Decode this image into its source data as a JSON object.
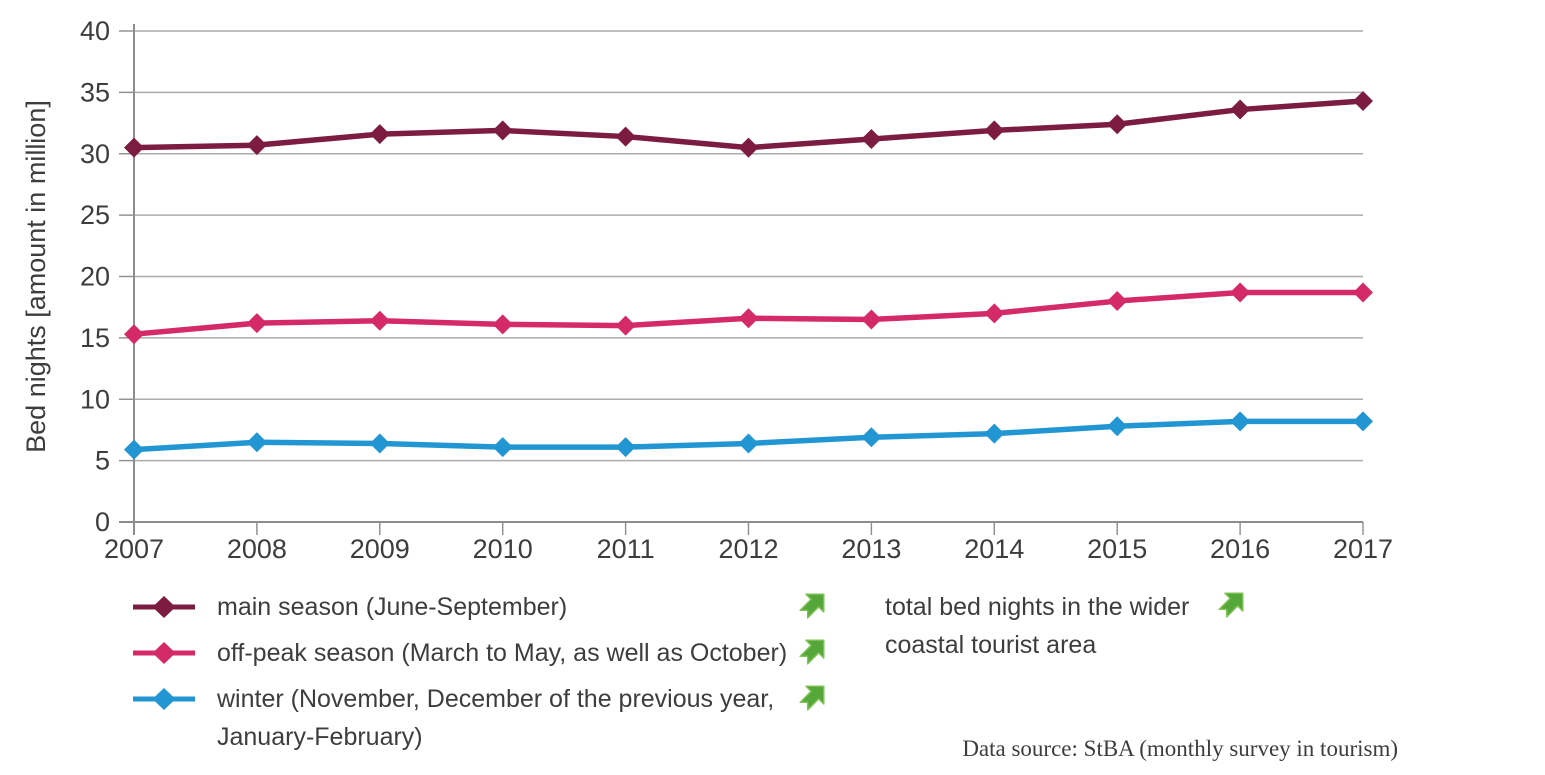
{
  "chart_data": {
    "type": "line",
    "title": "",
    "xlabel": "",
    "ylabel": "Bed nights [amount in million]",
    "ylim": [
      0,
      40
    ],
    "yticks": [
      0,
      5,
      10,
      15,
      20,
      25,
      30,
      35,
      40
    ],
    "grid": "horizontal",
    "legend_position": "bottom-left",
    "marker": "diamond",
    "x": [
      2007,
      2008,
      2009,
      2010,
      2011,
      2012,
      2013,
      2014,
      2015,
      2016,
      2017
    ],
    "series": [
      {
        "name": "main season (June-September)",
        "color": "#7c1c41",
        "values": [
          30.5,
          30.7,
          31.6,
          31.9,
          31.4,
          30.5,
          31.2,
          31.9,
          32.4,
          33.6,
          34.3
        ]
      },
      {
        "name": "off-peak season (March to May, as well as October)",
        "color": "#d52a68",
        "values": [
          15.3,
          16.2,
          16.4,
          16.1,
          16.0,
          16.6,
          16.5,
          17.0,
          18.0,
          18.7,
          18.7
        ]
      },
      {
        "name": "winter (November, December of the previous year, January-February)",
        "color": "#2196d3",
        "values": [
          5.9,
          6.5,
          6.4,
          6.1,
          6.1,
          6.4,
          6.9,
          7.2,
          7.8,
          8.2,
          8.2
        ]
      }
    ]
  },
  "legend": {
    "trend_icon": "up-right-arrow",
    "trend_color": "#55a73a",
    "trend_edge_color": "#7fc355"
  },
  "annotation": {
    "label": "total bed nights in the wider coastal tourist area"
  },
  "source": {
    "label": "Data source: StBA (monthly survey in tourism)"
  },
  "colors": {
    "gridline": "#acacac",
    "axis": "#8d8d8d",
    "text": "#3d3d3c"
  }
}
